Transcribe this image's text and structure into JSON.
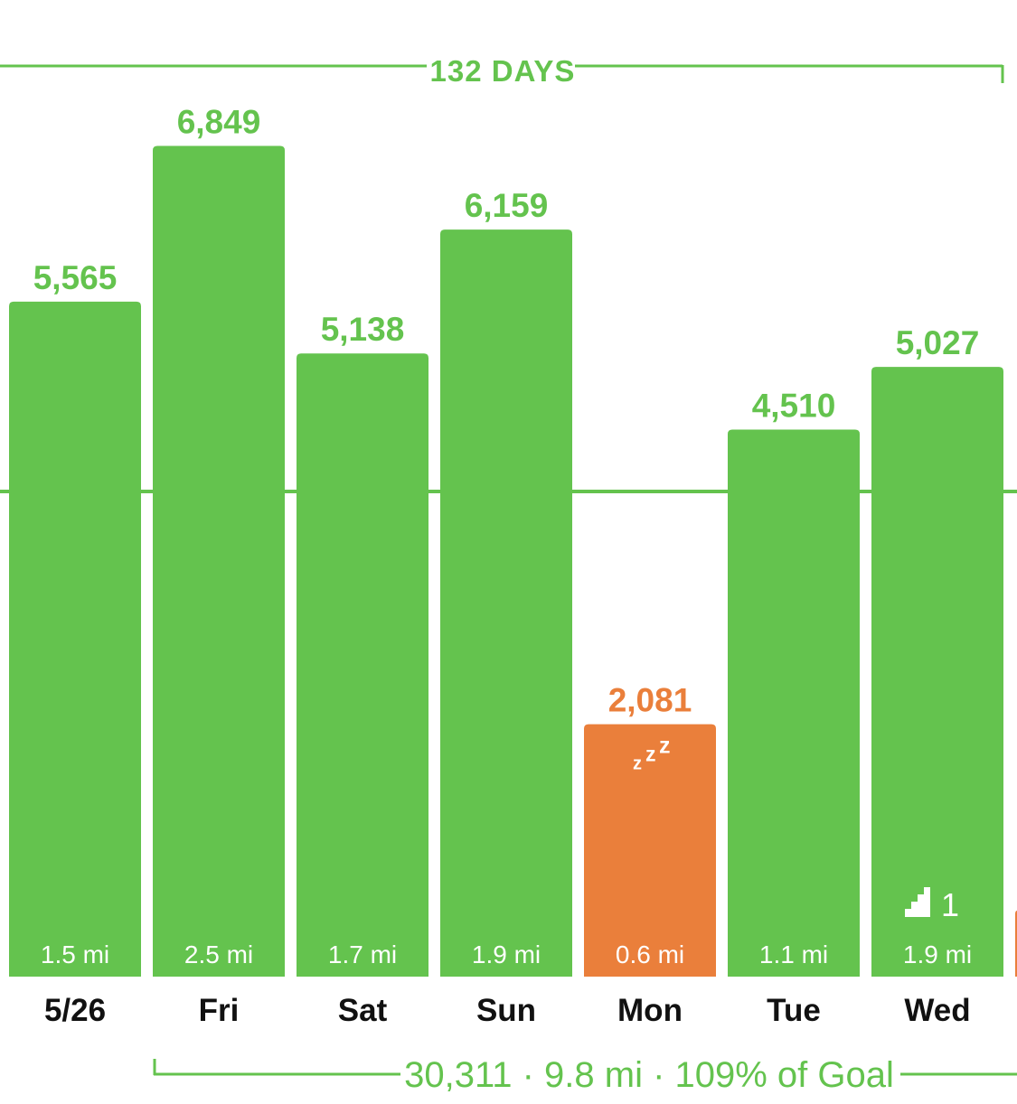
{
  "colors": {
    "green": "#64c34e",
    "orange": "#ea7f3b",
    "label_dark": "#111111",
    "bar_text": "#ffffff"
  },
  "streak": {
    "label": "132 DAYS"
  },
  "summary": {
    "label": "30,311 · 9.8 mi · 109% of Goal"
  },
  "chart_data": {
    "type": "bar",
    "categories": [
      "5/26",
      "Fri",
      "Sat",
      "Sun",
      "Mon",
      "Tue",
      "Wed"
    ],
    "values": [
      5565,
      6849,
      5138,
      6159,
      2081,
      4510,
      5027
    ],
    "value_labels": [
      "5,565",
      "6,849",
      "5,138",
      "6,159",
      "2,081",
      "4,510",
      "5,027"
    ],
    "distance_labels": [
      "1.5 mi",
      "2.5 mi",
      "1.7 mi",
      "1.9 mi",
      "0.6 mi",
      "1.1 mi",
      "1.9 mi"
    ],
    "bar_status": [
      "goal",
      "goal",
      "goal",
      "goal",
      "below",
      "goal",
      "goal"
    ],
    "goal_line": 4000,
    "rest_icon": {
      "day": "Mon",
      "icon": "zzz-sleep-icon"
    },
    "flights": {
      "day": "Wed",
      "icon": "stairs-icon",
      "count": "1"
    },
    "ylim": [
      0,
      7400
    ],
    "grid": false,
    "legend": "none"
  }
}
